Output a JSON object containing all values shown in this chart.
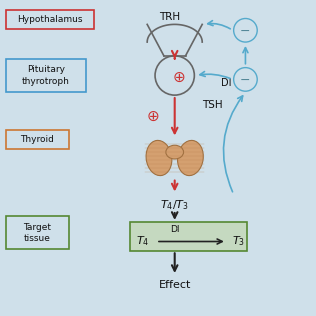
{
  "bg_color": "#cfe0ea",
  "hypothalamus_label": "Hypothalamus",
  "pituitary_label": "Pituitary\nthyrotroph",
  "thyroid_label": "Thyroid",
  "target_label": "Target\ntissue",
  "trh_label": "TRH",
  "tsh_label": "TSH",
  "di_label": "DI",
  "effect_label": "Effect",
  "box_red_color": "#cc3333",
  "box_blue_color": "#4499cc",
  "box_orange_color": "#cc7733",
  "box_green_color": "#558833",
  "arrow_red": "#cc3333",
  "arrow_black": "#222222",
  "arrow_blue": "#55aacc",
  "plus_color": "#cc3333",
  "minus_color": "#558899",
  "thyroid_fill": "#d4a070",
  "thyroid_edge": "#a07040",
  "thyroid_line": "#b88050",
  "target_box_fill": "#c5d9c0",
  "target_box_edge": "#558833",
  "shape_color": "#666666"
}
